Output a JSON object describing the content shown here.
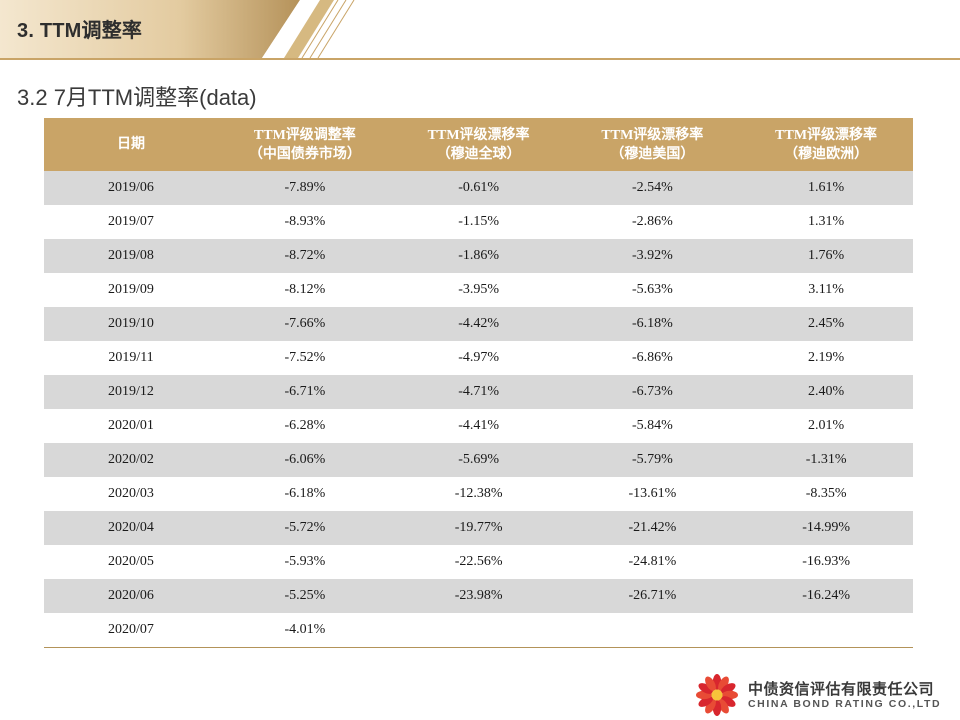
{
  "header": {
    "title": "3. TTM调整率"
  },
  "subtitle": "3.2 7月TTM调整率(data)",
  "colors": {
    "accent_gold": "#c9a467",
    "row_gray": "#d8d8d8",
    "logo_red": "#d8262e"
  },
  "table": {
    "headers": [
      {
        "line1": "日期",
        "line2": ""
      },
      {
        "line1": "TTM评级调整率",
        "line2": "（中国债券市场）"
      },
      {
        "line1": "TTM评级漂移率",
        "line2": "（穆迪全球）"
      },
      {
        "line1": "TTM评级漂移率",
        "line2": "（穆迪美国）"
      },
      {
        "line1": "TTM评级漂移率",
        "line2": "（穆迪欧洲）"
      }
    ],
    "rows": [
      [
        "2019/06",
        "-7.89%",
        "-0.61%",
        "-2.54%",
        "1.61%"
      ],
      [
        "2019/07",
        "-8.93%",
        "-1.15%",
        "-2.86%",
        "1.31%"
      ],
      [
        "2019/08",
        "-8.72%",
        "-1.86%",
        "-3.92%",
        "1.76%"
      ],
      [
        "2019/09",
        "-8.12%",
        "-3.95%",
        "-5.63%",
        "3.11%"
      ],
      [
        "2019/10",
        "-7.66%",
        "-4.42%",
        "-6.18%",
        "2.45%"
      ],
      [
        "2019/11",
        "-7.52%",
        "-4.97%",
        "-6.86%",
        "2.19%"
      ],
      [
        "2019/12",
        "-6.71%",
        "-4.71%",
        "-6.73%",
        "2.40%"
      ],
      [
        "2020/01",
        "-6.28%",
        "-4.41%",
        "-5.84%",
        "2.01%"
      ],
      [
        "2020/02",
        "-6.06%",
        "-5.69%",
        "-5.79%",
        "-1.31%"
      ],
      [
        "2020/03",
        "-6.18%",
        "-12.38%",
        "-13.61%",
        "-8.35%"
      ],
      [
        "2020/04",
        "-5.72%",
        "-19.77%",
        "-21.42%",
        "-14.99%"
      ],
      [
        "2020/05",
        "-5.93%",
        "-22.56%",
        "-24.81%",
        "-16.93%"
      ],
      [
        "2020/06",
        "-5.25%",
        "-23.98%",
        "-26.71%",
        "-16.24%"
      ],
      [
        "2020/07",
        "-4.01%",
        "",
        "",
        ""
      ]
    ]
  },
  "logo": {
    "name_cn": "中债资信评估有限责任公司",
    "name_en": "CHINA BOND RATING CO.,LTD",
    "icon": "flower-logo-icon"
  }
}
